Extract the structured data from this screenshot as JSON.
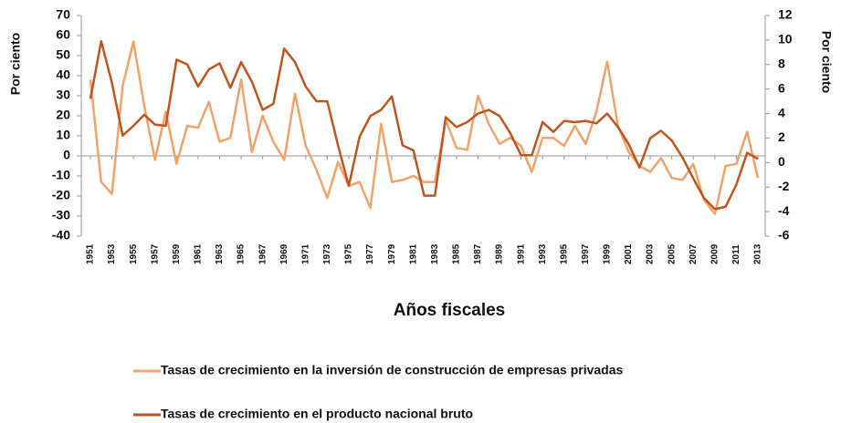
{
  "chart_data": {
    "type": "line",
    "x_label": "Años fiscales",
    "y_label": "Por ciento",
    "y2_label": "Por ciento",
    "x": [
      1951,
      1952,
      1953,
      1954,
      1955,
      1956,
      1957,
      1958,
      1959,
      1960,
      1961,
      1962,
      1963,
      1964,
      1965,
      1966,
      1967,
      1968,
      1969,
      1970,
      1971,
      1972,
      1973,
      1974,
      1975,
      1976,
      1977,
      1978,
      1979,
      1980,
      1981,
      1982,
      1983,
      1984,
      1985,
      1986,
      1987,
      1988,
      1989,
      1990,
      1991,
      1992,
      1993,
      1994,
      1995,
      1996,
      1997,
      1998,
      1999,
      2000,
      2001,
      2002,
      2003,
      2004,
      2005,
      2006,
      2007,
      2008,
      2009,
      2010,
      2011,
      2012,
      2013
    ],
    "xlim": [
      1951,
      2013
    ],
    "xticks": [
      1951,
      1953,
      1955,
      1957,
      1959,
      1961,
      1963,
      1965,
      1967,
      1969,
      1971,
      1973,
      1975,
      1977,
      1979,
      1981,
      1983,
      1985,
      1987,
      1989,
      1991,
      1993,
      1995,
      1997,
      1999,
      2001,
      2003,
      2005,
      2007,
      2009,
      2011,
      2013
    ],
    "ylim": [
      -40,
      70
    ],
    "yticks": [
      -40,
      -30,
      -20,
      -10,
      0,
      10,
      20,
      30,
      40,
      50,
      60,
      70
    ],
    "y2lim": [
      -6,
      12
    ],
    "y2ticks": [
      -6,
      -4,
      -2,
      0,
      2,
      4,
      6,
      8,
      10,
      12
    ],
    "grid": false,
    "legend": "bottom",
    "series": [
      {
        "name": "Tasas de crecimiento en la inversión de construcción de empresas privadas",
        "color": "#f0a46c",
        "axis": "y",
        "values": [
          38,
          -13,
          -19,
          35,
          57,
          25,
          -2,
          22,
          -4,
          15,
          14,
          27,
          7,
          9,
          38,
          2,
          20,
          7,
          -2,
          31,
          5,
          -7,
          -21,
          -3,
          -15,
          -13,
          -26,
          16,
          -13,
          -12,
          -10,
          -13,
          -13,
          18,
          4,
          3,
          30,
          16,
          6,
          9,
          5,
          -8,
          9,
          9,
          5,
          15,
          6,
          22,
          47,
          15,
          2,
          -5,
          -8,
          -1,
          -11,
          -12,
          -4,
          -22,
          -29,
          -5,
          -4,
          12,
          -11
        ]
      },
      {
        "name": "Tasas de crecimiento en el producto nacional bruto",
        "color": "#c0561e",
        "axis": "y2",
        "values": [
          5.2,
          9.9,
          6.5,
          2.2,
          3.0,
          3.9,
          3.1,
          3.0,
          8.4,
          8.0,
          6.2,
          7.6,
          8.1,
          6.1,
          8.2,
          6.6,
          4.3,
          4.8,
          9.3,
          8.2,
          6.2,
          5.0,
          5.0,
          1.4,
          -1.9,
          2.1,
          3.8,
          4.3,
          5.4,
          1.4,
          1.0,
          -2.7,
          -2.7,
          3.7,
          2.9,
          3.3,
          4.0,
          4.3,
          3.8,
          2.4,
          0.6,
          0.6,
          3.3,
          2.5,
          3.4,
          3.3,
          3.4,
          3.2,
          4.0,
          2.9,
          1.5,
          -0.4,
          2.0,
          2.6,
          1.8,
          0.4,
          -1.3,
          -2.9,
          -3.8,
          -3.6,
          -1.8,
          0.8,
          0.3
        ]
      }
    ]
  }
}
